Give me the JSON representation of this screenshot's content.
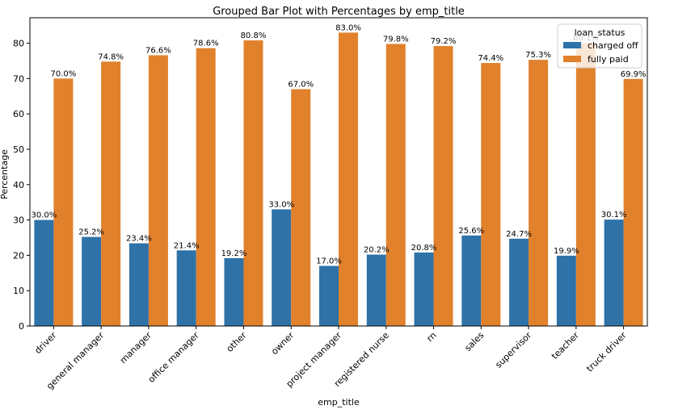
{
  "chart_data": {
    "type": "bar",
    "title": "Grouped Bar Plot with Percentages by emp_title",
    "xlabel": "emp_title",
    "ylabel": "Percentage",
    "ylim": [
      0,
      87.2
    ],
    "yticks": [
      "0",
      "10",
      "20",
      "30",
      "40",
      "50",
      "60",
      "70",
      "80"
    ],
    "categories": [
      "driver",
      "general manager",
      "manager",
      "office manager",
      "other",
      "owner",
      "project manager",
      "registered nurse",
      "rn",
      "sales",
      "supervisor",
      "teacher",
      "truck driver"
    ],
    "series": [
      {
        "name": "charged off",
        "color": "#2e72a8",
        "values": [
          30.0,
          25.2,
          23.4,
          21.4,
          19.2,
          33.0,
          17.0,
          20.2,
          20.8,
          25.6,
          24.7,
          19.9,
          30.1
        ],
        "labels": [
          "30.0%",
          "25.2%",
          "23.4%",
          "21.4%",
          "19.2%",
          "33.0%",
          "17.0%",
          "20.2%",
          "20.8%",
          "25.6%",
          "24.7%",
          "19.9%",
          "30.1%"
        ]
      },
      {
        "name": "fully paid",
        "color": "#e1812c",
        "values": [
          70.0,
          74.8,
          76.6,
          78.6,
          80.8,
          67.0,
          83.0,
          79.8,
          79.2,
          74.4,
          75.3,
          80.1,
          69.9
        ],
        "labels": [
          "70.0%",
          "74.8%",
          "76.6%",
          "78.6%",
          "80.8%",
          "67.0%",
          "83.0%",
          "79.8%",
          "79.2%",
          "74.4%",
          "75.3%",
          "80.1%",
          "69.9%"
        ]
      }
    ],
    "legend": {
      "title": "loan_status",
      "placement": "top-right"
    },
    "grid": false
  }
}
